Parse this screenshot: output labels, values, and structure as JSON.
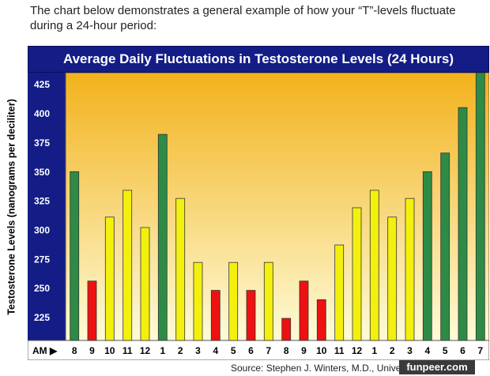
{
  "intro_text": "The chart below demonstrates a general example of how your “T”-levels fluctuate during a 24-hour period:",
  "colors": {
    "title_bar": "#141c86",
    "plot_top": "#f2b21c",
    "plot_bottom": "#fefbd8",
    "green": "#2e8b45",
    "yellow": "#f4f00e",
    "red": "#ee1111"
  },
  "chart_data": {
    "type": "bar",
    "title": "Average Daily Fluctuations in Testosterone Levels (24 Hours)",
    "ylabel": "Testosterone Levels (nanograms per deciliter)",
    "xlabel": "",
    "x_prefix": "AM ▶",
    "ylim": [
      205,
      435
    ],
    "yticks": [
      225,
      250,
      275,
      300,
      325,
      350,
      375,
      400,
      425
    ],
    "grid": false,
    "categories": [
      "8",
      "9",
      "10",
      "11",
      "12",
      "1",
      "2",
      "3",
      "4",
      "5",
      "6",
      "7",
      "8",
      "9",
      "10",
      "11",
      "12",
      "1",
      "2",
      "3",
      "4",
      "5",
      "6",
      "7"
    ],
    "values": [
      350,
      256,
      311,
      334,
      302,
      382,
      327,
      272,
      248,
      272,
      248,
      272,
      224,
      256,
      240,
      287,
      319,
      334,
      311,
      327,
      350,
      366,
      405,
      435
    ],
    "bar_colors": [
      "green",
      "red",
      "yellow",
      "yellow",
      "yellow",
      "green",
      "yellow",
      "yellow",
      "red",
      "yellow",
      "red",
      "yellow",
      "red",
      "red",
      "red",
      "yellow",
      "yellow",
      "yellow",
      "yellow",
      "yellow",
      "green",
      "green",
      "green",
      "green"
    ]
  },
  "source_text": "Source:  Stephen J. Winters, M.D., University of Louisville",
  "watermark": "funpeer.com"
}
